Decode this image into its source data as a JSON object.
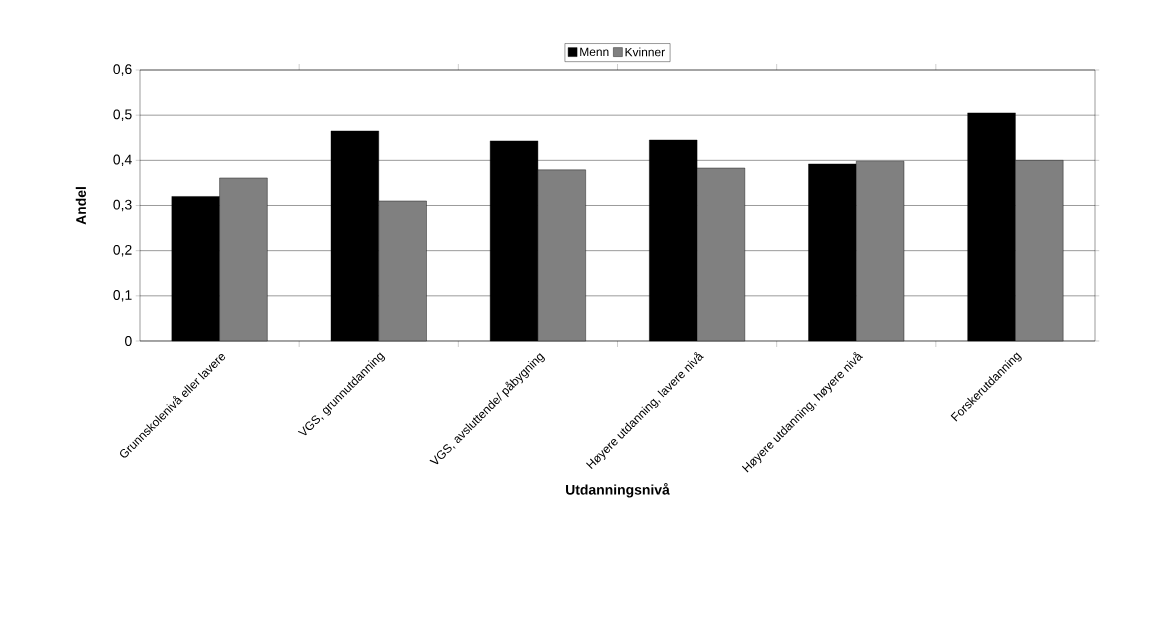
{
  "chart_data": {
    "type": "bar",
    "xlabel": "Utdanningsnivå",
    "ylabel": "Andel",
    "categories": [
      "Grunnskolenivå eller lavere",
      "VGS, grunnutdanning",
      "VGS, avsluttende/ påbygning",
      "Høyere utdanning, lavere nivå",
      "Høyere utdanning, høyere nivå",
      "Forskerutdanning"
    ],
    "series": [
      {
        "name": "Menn",
        "color": "#000000",
        "values": [
          0.32,
          0.465,
          0.443,
          0.445,
          0.392,
          0.505
        ]
      },
      {
        "name": "Kvinner",
        "color": "#808080",
        "values": [
          0.361,
          0.31,
          0.379,
          0.383,
          0.398,
          0.4
        ]
      }
    ],
    "ylim": [
      0,
      0.6
    ],
    "yticks": [
      0,
      {
        "value": 0.1,
        "label": "0,1"
      },
      {
        "value": 0.2,
        "label": "0,2"
      },
      {
        "value": 0.3,
        "label": "0,3"
      },
      {
        "value": 0.4,
        "label": "0,4"
      },
      {
        "value": 0.5,
        "label": "0,5"
      },
      {
        "value": 0.6,
        "label": "0,6"
      }
    ],
    "grid": "y",
    "legend": "top"
  }
}
